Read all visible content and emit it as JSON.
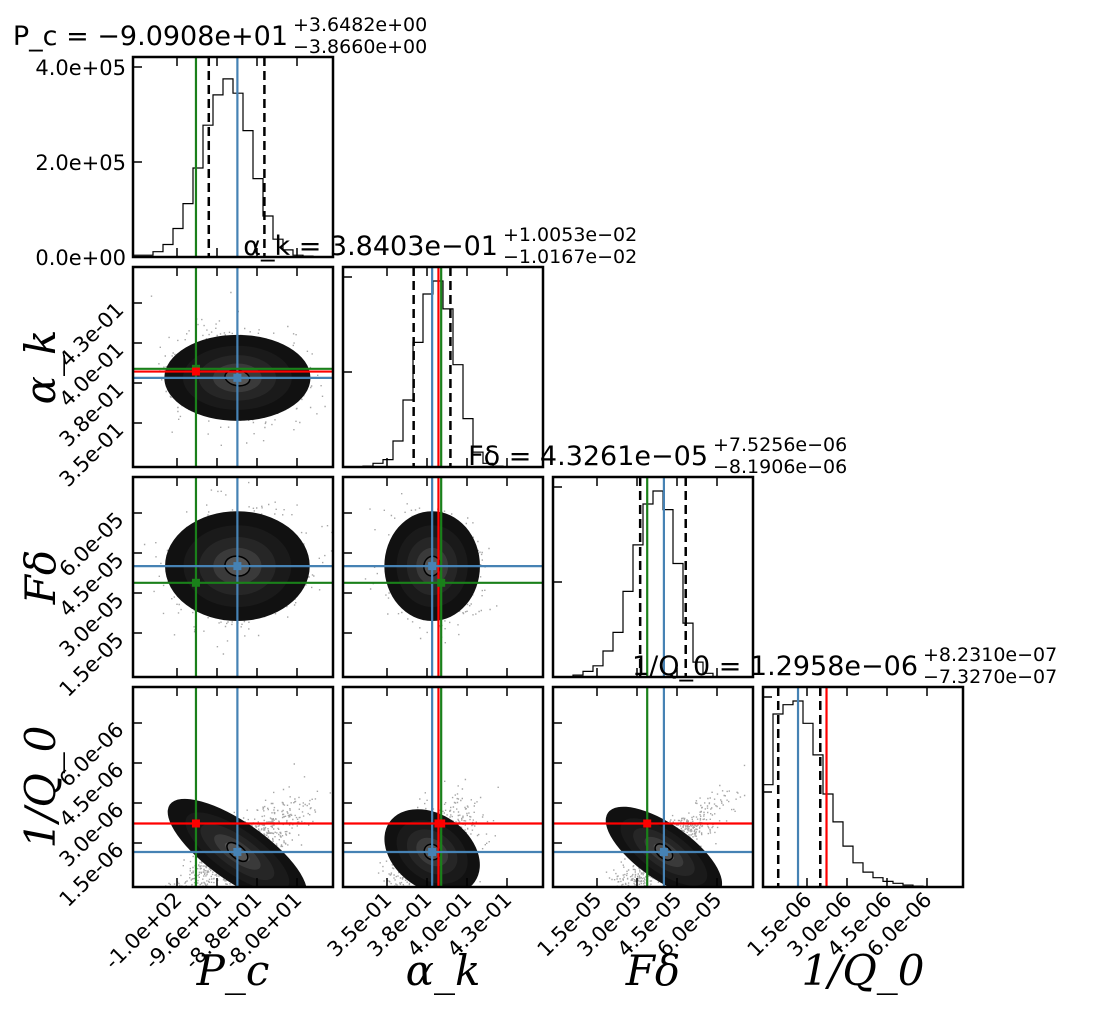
{
  "chart_data": {
    "type": "corner",
    "parameters": [
      {
        "key": "Pc",
        "axis_label": "P_c",
        "title_prefix": "P_c = ",
        "median": "−9.0908e+01",
        "plus": "+3.6482e+00",
        "minus": "−3.8660e+00",
        "ticks": [
          "-1.0e+02",
          "-9.6e+01",
          "-8.8e+01",
          "-8.0e+01"
        ],
        "range": [
          -105,
          -78
        ]
      },
      {
        "key": "ak",
        "axis_label": "α_k",
        "title_prefix": "α_k = ",
        "median": "3.8403e−01",
        "plus": "+1.0053e−02",
        "minus": "−1.0167e−02",
        "ticks": [
          "3.5e-01",
          "3.8e-01",
          "4.0e-01",
          "4.3e-01"
        ],
        "range": [
          0.335,
          0.445
        ]
      },
      {
        "key": "Fd",
        "axis_label": "Fδ",
        "title_prefix": "Fδ = ",
        "median": "4.3261e−05",
        "plus": "+7.5256e−06",
        "minus": "−8.1906e−06",
        "ticks": [
          "1.5e-05",
          "3.0e-05",
          "4.5e-05",
          "6.0e-05"
        ],
        "range": [
          5e-06,
          7.4e-05
        ]
      },
      {
        "key": "Q0",
        "axis_label": "1/Q_0",
        "title_prefix": "1/Q_0 = ",
        "median": "1.2958e−06",
        "plus": "+8.2310e−07",
        "minus": "−7.3270e−07",
        "ticks": [
          "1.5e-06",
          "3.0e-06",
          "4.5e-06",
          "6.0e-06"
        ],
        "range": [
          0.0,
          7.4e-06
        ]
      }
    ],
    "diag_ylabels": [
      "0.0e+00",
      "2.0e+05",
      "4.0e+05"
    ],
    "diag_ymax": 420000,
    "medians": [
      -90.908,
      0.38403,
      4.3261e-05,
      1.2958e-06
    ],
    "quantiles_lo": [
      -94.77,
      0.37386,
      3.507e-05,
      5.63e-07
    ],
    "quantiles_hi": [
      -87.26,
      0.39408,
      5.079e-05,
      2.119e-06
    ],
    "truths_green": [
      -96.5,
      0.389,
      3.75e-05,
      null
    ],
    "truths_red": [
      null,
      0.3875,
      null,
      2.35e-06
    ],
    "histograms": [
      [
        0.01,
        0.01,
        0.03,
        0.07,
        0.16,
        0.3,
        0.5,
        0.74,
        0.91,
        1.0,
        0.92,
        0.71,
        0.44,
        0.23,
        0.1,
        0.04,
        0.01,
        0.005,
        0.0,
        0.0
      ],
      [
        0.0,
        0.0,
        0.005,
        0.02,
        0.04,
        0.14,
        0.36,
        0.67,
        0.93,
        1.0,
        0.85,
        0.55,
        0.26,
        0.08,
        0.02,
        0.005,
        0.0,
        0.0,
        0.0,
        0.0
      ],
      [
        0.0,
        0.0,
        0.01,
        0.03,
        0.06,
        0.14,
        0.24,
        0.46,
        0.71,
        0.93,
        1.0,
        0.9,
        0.61,
        0.29,
        0.08,
        0.02,
        0.0,
        0.0,
        0.0,
        0.0
      ],
      [
        0.55,
        0.93,
        0.98,
        1.0,
        0.88,
        0.71,
        0.5,
        0.35,
        0.22,
        0.13,
        0.08,
        0.05,
        0.03,
        0.02,
        0.01,
        0.005,
        0.0,
        0.0,
        0.0,
        0.0
      ]
    ],
    "colors": {
      "median": "#4682b4",
      "truth_green": "#1a801a",
      "truth_red": "#ff0000",
      "density": "#111111",
      "quantile": "#000000"
    }
  }
}
